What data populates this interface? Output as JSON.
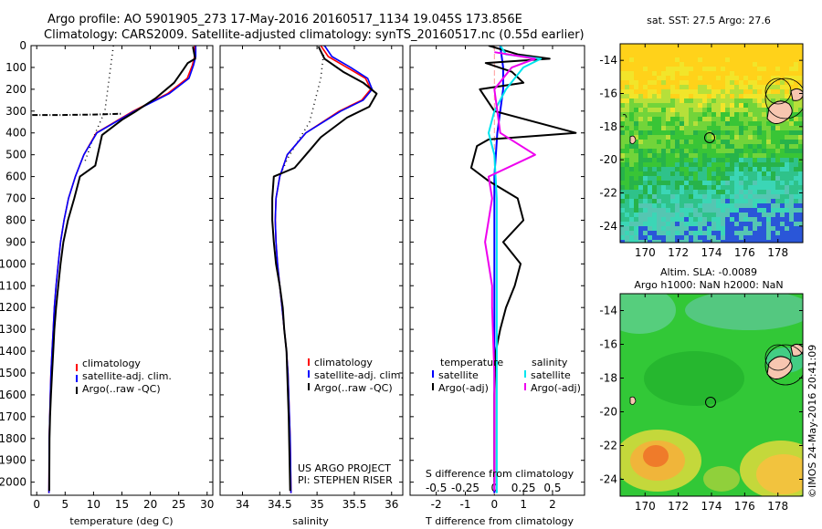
{
  "header": {
    "line1": "Argo profile: AO 5901905_273 17-May-2016 20160517_1134 19.045S 173.856E",
    "line2": "Climatology: CARS2009. Satellite-adjusted climatology: synTS_20160517.nc (0.55d earlier)"
  },
  "colors": {
    "climatology": "#ff0000",
    "satellite": "#0000ff",
    "argo": "#000000",
    "salinity_satellite": "#00e5ee",
    "salinity_argo": "#ee00ee"
  },
  "depth_ticks": [
    "0",
    "100",
    "200",
    "300",
    "400",
    "500",
    "600",
    "700",
    "800",
    "900",
    "1000",
    "1100",
    "1200",
    "1300",
    "1400",
    "1500",
    "1600",
    "1700",
    "1800",
    "1900",
    "2000"
  ],
  "panel_temp": {
    "xlabel": "temperature (deg C)",
    "xticks": [
      "0",
      "5",
      "10",
      "15",
      "20",
      "25",
      "30"
    ],
    "legend": [
      "climatology",
      "satellite-adj. clim.",
      "Argo(..raw -QC)"
    ]
  },
  "panel_sal": {
    "xlabel": "salinity",
    "xticks": [
      "34",
      "34.5",
      "35",
      "35.5",
      "36"
    ],
    "legend": [
      "climatology",
      "satellite-adj. clim.",
      "Argo(..raw -QC)"
    ],
    "credit1": "US ARGO PROJECT",
    "credit2": "PI: STEPHEN RISER"
  },
  "panel_diff": {
    "xlabel_top": "S difference from climatology",
    "xticks_top": [
      "-0.5",
      "-0.25",
      "0",
      "0.25",
      "0.5"
    ],
    "xlabel": "T difference from climatology",
    "xticks": [
      "-2",
      "-1",
      "0",
      "1",
      "2"
    ],
    "legend_t_title": "temperature",
    "legend_t": [
      "satellite",
      "Argo(-adj)"
    ],
    "legend_s_title": "salinity",
    "legend_s": [
      "satellite",
      "Argo(-adj)"
    ]
  },
  "map_sst": {
    "title": "sat. SST: 27.5 Argo: 27.6",
    "yticks": [
      "-14",
      "-16",
      "-18",
      "-20",
      "-22",
      "-24"
    ],
    "xticks": [
      "170",
      "172",
      "174",
      "176",
      "178"
    ]
  },
  "map_sla": {
    "title1": "Altim. SLA: -0.0089",
    "title2": "Argo h1000: NaN h2000: NaN",
    "yticks": [
      "-14",
      "-16",
      "-18",
      "-20",
      "-22",
      "-24"
    ],
    "xticks": [
      "170",
      "172",
      "174",
      "176",
      "178"
    ]
  },
  "side_text": "©IMOS 24-May-2016 20:41:09",
  "chart_data": [
    {
      "type": "line",
      "name": "temperature profile",
      "xlabel": "temperature (deg C)",
      "ylabel": "",
      "xlim": [
        -1,
        31
      ],
      "ylim": [
        2060,
        0
      ],
      "series": [
        {
          "name": "climatology",
          "color": "#ff0000",
          "x": [
            27.8,
            27.8,
            27.4,
            26.5,
            23.0,
            17.0,
            10.5,
            8.3,
            6.8,
            5.6,
            4.8,
            4.2,
            3.8,
            3.4,
            3.1,
            2.9,
            2.7,
            2.5,
            2.4,
            2.3,
            2.2,
            2.15
          ],
          "y": [
            0,
            50,
            90,
            150,
            220,
            300,
            400,
            500,
            600,
            700,
            800,
            900,
            1000,
            1100,
            1200,
            1300,
            1400,
            1500,
            1600,
            1700,
            1800,
            2050
          ]
        },
        {
          "name": "satellite-adj. clim.",
          "color": "#0000ff",
          "x": [
            28.0,
            28.0,
            27.6,
            26.8,
            23.3,
            17.2,
            10.6,
            8.3,
            6.8,
            5.6,
            4.8,
            4.2,
            3.8,
            3.4,
            3.1,
            2.9,
            2.7,
            2.5,
            2.4,
            2.3,
            2.2,
            2.15
          ],
          "y": [
            0,
            50,
            90,
            150,
            220,
            300,
            400,
            500,
            600,
            700,
            800,
            900,
            1000,
            1100,
            1200,
            1300,
            1400,
            1500,
            1600,
            1700,
            1800,
            2050
          ]
        },
        {
          "name": "Argo(..raw -QC)",
          "color": "#000000",
          "x": [
            27.5,
            27.9,
            26.6,
            25.8,
            24.2,
            21.0,
            17.2,
            15.0,
            11.5,
            10.3,
            7.6,
            6.6,
            5.5,
            4.7,
            4.2,
            3.8,
            3.4,
            3.1,
            2.9,
            2.7,
            2.5,
            2.35,
            2.25,
            2.2
          ],
          "y": [
            5,
            60,
            80,
            110,
            170,
            240,
            305,
            340,
            410,
            550,
            600,
            700,
            800,
            900,
            1000,
            1100,
            1200,
            1300,
            1400,
            1500,
            1600,
            1700,
            1800,
            2040
          ]
        }
      ]
    },
    {
      "type": "line",
      "name": "salinity profile",
      "xlabel": "salinity",
      "ylabel": "",
      "xlim": [
        33.7,
        36.15
      ],
      "ylim": [
        2060,
        0
      ],
      "series": [
        {
          "name": "climatology",
          "color": "#ff0000",
          "x": [
            35.05,
            35.15,
            35.4,
            35.65,
            35.72,
            35.6,
            35.3,
            34.85,
            34.6,
            34.5,
            34.45,
            34.44,
            34.45,
            34.47,
            34.5,
            34.53,
            34.56,
            34.59,
            34.61,
            34.62,
            34.64,
            34.65
          ],
          "y": [
            0,
            50,
            100,
            150,
            200,
            250,
            300,
            400,
            500,
            600,
            700,
            800,
            900,
            1000,
            1100,
            1200,
            1300,
            1400,
            1500,
            1600,
            1800,
            2050
          ]
        },
        {
          "name": "satellite-adj. clim.",
          "color": "#0000ff",
          "x": [
            35.1,
            35.2,
            35.45,
            35.68,
            35.74,
            35.62,
            35.32,
            34.85,
            34.6,
            34.5,
            34.45,
            34.44,
            34.45,
            34.47,
            34.5,
            34.53,
            34.56,
            34.59,
            34.61,
            34.62,
            34.64,
            34.65
          ],
          "y": [
            0,
            50,
            100,
            150,
            200,
            250,
            300,
            400,
            500,
            600,
            700,
            800,
            900,
            1000,
            1100,
            1200,
            1300,
            1400,
            1500,
            1600,
            1800,
            2050
          ]
        },
        {
          "name": "Argo(..raw -QC)",
          "color": "#000000",
          "x": [
            35.02,
            35.1,
            35.35,
            35.62,
            35.8,
            35.7,
            35.4,
            35.05,
            34.85,
            34.7,
            34.42,
            34.4,
            34.4,
            34.42,
            34.45,
            34.5,
            34.54,
            34.56,
            34.59,
            34.6,
            34.62,
            34.64
          ],
          "y": [
            5,
            60,
            120,
            170,
            220,
            280,
            330,
            420,
            500,
            560,
            600,
            700,
            800,
            900,
            1000,
            1100,
            1200,
            1300,
            1400,
            1500,
            1700,
            2040
          ]
        }
      ]
    },
    {
      "type": "line",
      "name": "difference from climatology",
      "xlabel": "T difference from climatology",
      "xlabel_top": "S difference from climatology",
      "xlim_t": [
        -2.9,
        3.1
      ],
      "xlim_s": [
        -0.725,
        0.775
      ],
      "ylim": [
        2060,
        0
      ],
      "series": [
        {
          "name": "temperature satellite",
          "color": "#0000ff",
          "axis": "T",
          "x": [
            0.2,
            0.25,
            0.3,
            0.3,
            0.2,
            0.1,
            0.05,
            0,
            0,
            0,
            0,
            0,
            0,
            0,
            0,
            0
          ],
          "y": [
            0,
            50,
            100,
            200,
            300,
            400,
            500,
            600,
            700,
            800,
            1000,
            1200,
            1400,
            1600,
            1800,
            2050
          ]
        },
        {
          "name": "temperature Argo(-adj)",
          "color": "#000000",
          "axis": "T",
          "x": [
            -0.2,
            0.8,
            1.9,
            -0.3,
            0.6,
            1.0,
            -0.5,
            0.0,
            2.8,
            -0.2,
            -0.6,
            -0.8,
            -0.2,
            0.8,
            1.0,
            0.3,
            0.9,
            0.7,
            0.4,
            0.2,
            0.05,
            0,
            0,
            0
          ],
          "y": [
            0,
            40,
            60,
            80,
            120,
            170,
            200,
            300,
            400,
            430,
            460,
            560,
            620,
            700,
            800,
            900,
            1000,
            1100,
            1200,
            1300,
            1400,
            1600,
            1800,
            2000
          ]
        },
        {
          "name": "salinity satellite",
          "color": "#00e5ee",
          "axis": "S",
          "x": [
            0.05,
            0.1,
            0.4,
            0.25,
            0.1,
            0.0,
            -0.05,
            0.0,
            0.02,
            0.02,
            0.02,
            0.02,
            0.02
          ],
          "y": [
            0,
            40,
            60,
            100,
            200,
            300,
            400,
            500,
            700,
            1000,
            1400,
            1800,
            2050
          ]
        },
        {
          "name": "salinity Argo(-adj)",
          "color": "#ee00ee",
          "axis": "S",
          "x": [
            0.0,
            0.35,
            0.15,
            0.0,
            0.05,
            0.35,
            -0.05,
            -0.02,
            -0.05,
            -0.08,
            -0.05,
            -0.02,
            -0.02,
            0.0,
            0.0
          ],
          "y": [
            30,
            60,
            100,
            200,
            400,
            500,
            600,
            700,
            800,
            900,
            1000,
            1100,
            1200,
            1500,
            2040
          ]
        }
      ]
    },
    {
      "type": "heatmap",
      "name": "satellite SST map",
      "title": "sat. SST: 27.5 Argo: 27.6",
      "xlim": [
        168.5,
        179.5
      ],
      "ylim": [
        -25,
        -13
      ],
      "argo_position": {
        "lon": 173.856,
        "lat": -19.045
      }
    },
    {
      "type": "heatmap",
      "name": "altimetry SLA map",
      "title": "Altim. SLA: -0.0089",
      "xlim": [
        168.5,
        179.5
      ],
      "ylim": [
        -25,
        -13
      ],
      "argo_position": {
        "lon": 173.856,
        "lat": -19.045
      }
    }
  ]
}
